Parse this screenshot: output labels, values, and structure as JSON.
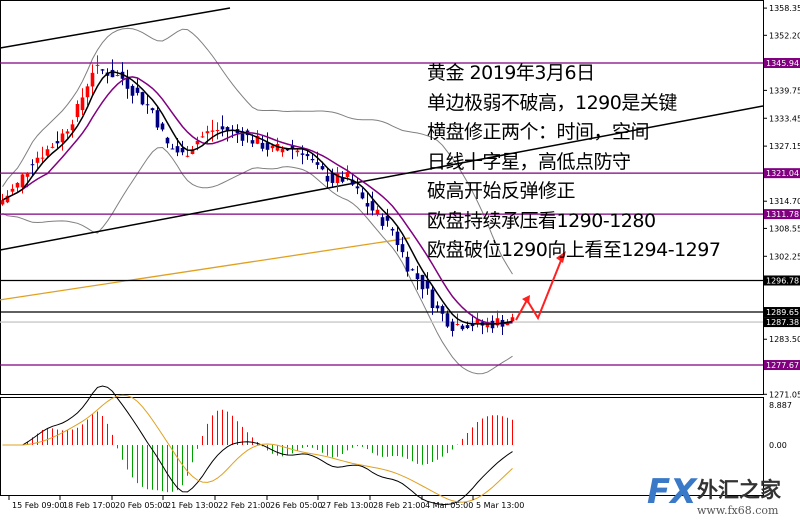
{
  "chart": {
    "price_axis": [
      "1358.35",
      "1352.20",
      "1339.75",
      "1333.45",
      "1327.15",
      "1314.70",
      "1308.55",
      "1302.25",
      "1283.50",
      "1271.05"
    ],
    "indicator_axis": [
      "8.887",
      "0.00"
    ],
    "time_axis": [
      "15 Feb 09:00",
      "18 Feb 17:00",
      "20 Feb 05:00",
      "21 Feb 13:00",
      "22 Feb 21:00",
      "26 Feb 05:00",
      "27 Feb 13:00",
      "28 Feb 21:00",
      "4 Mar 05:00",
      "5 Mar 13:00"
    ],
    "levels": [
      {
        "label": "1345.94",
        "price": 1345.94,
        "color": "#800080"
      },
      {
        "label": "1321.04",
        "price": 1321.04,
        "color": "#800080"
      },
      {
        "label": "1311.78",
        "price": 1311.78,
        "color": "#800080"
      },
      {
        "label": "1296.78",
        "price": 1296.78,
        "color": "#000000"
      },
      {
        "label": "1289.65",
        "price": 1289.65,
        "color": "#000000"
      },
      {
        "label": "1287.38",
        "price": 1287.38,
        "color": "#c8c8c8"
      },
      {
        "label": "1277.67",
        "price": 1277.67,
        "color": "#800080"
      }
    ],
    "closes": [
      1314.97,
      1318.36,
      1324.0,
      1326.3,
      1329.7,
      1335.3,
      1344.4,
      1343.9,
      1342.5,
      1338.7,
      1335.3,
      1327.4,
      1325.1,
      1328.5,
      1330.8,
      1330.8,
      1329.7,
      1328.1,
      1326.3,
      1326.7,
      1326.3,
      1321.75,
      1319.5,
      1319.9,
      1315.0,
      1311.6,
      1308.2,
      1300.3,
      1295.8,
      1290.1,
      1286.7,
      1287.2,
      1286.7,
      1287.4,
      1287.8
    ],
    "long_ma": [
      1292.4,
      1306.4
    ],
    "colors": {
      "bull": "#ff0000",
      "bear": "#000080",
      "fast_ma": "#000000",
      "slow_ma": "#800080",
      "long_ma": "#e0a020",
      "bands": "#808080",
      "arrow": "#ff2020",
      "hist_pos": "#ff0000",
      "hist_neg": "#00a000",
      "signal": "#e0a020"
    }
  },
  "annotation": {
    "lines": [
      "黄金 2019年3月6日",
      "单边极弱不破高，1290是关键",
      "横盘修正两个：时间，空间",
      "日线十字星，高低点防守",
      "破高开始反弹修正",
      "欧盘持续承压看1290-1280",
      "欧盘破位1290向上看至1294-1297"
    ]
  },
  "logo": {
    "brand": "FX",
    "name": "外汇之家",
    "url": "www.fx68.com"
  }
}
